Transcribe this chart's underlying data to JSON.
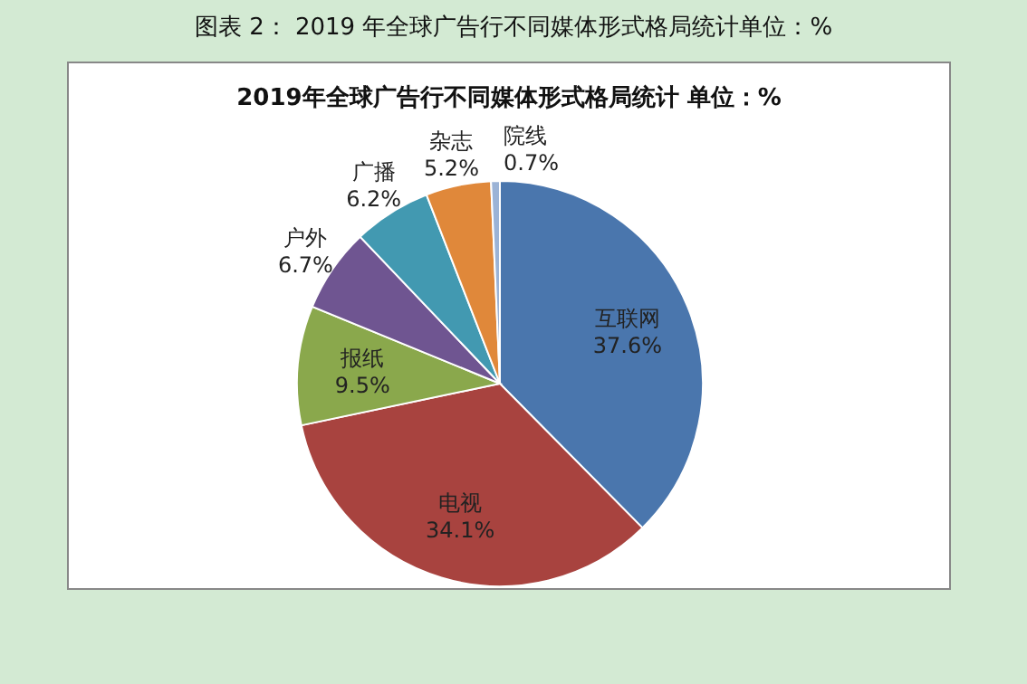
{
  "chart_data": {
    "type": "pie",
    "title": "图表 2：  2019 年全球广告行不同媒体形式格局统计单位：%",
    "subtitle": "2019年全球广告行不同媒体形式格局统计 单位：%",
    "categories": [
      "互联网",
      "电视",
      "报纸",
      "户外",
      "广播",
      "杂志",
      "院线"
    ],
    "values": [
      37.6,
      34.1,
      9.5,
      6.7,
      6.2,
      5.2,
      0.7
    ],
    "value_labels": [
      "37.6%",
      "34.1%",
      "9.5%",
      "6.7%",
      "6.2%",
      "5.2%",
      "0.7%"
    ],
    "colors": [
      "#4a76ad",
      "#a8433f",
      "#8aa84c",
      "#6f5591",
      "#4299b1",
      "#e0883a",
      "#9bb3d6"
    ],
    "legend": false
  }
}
